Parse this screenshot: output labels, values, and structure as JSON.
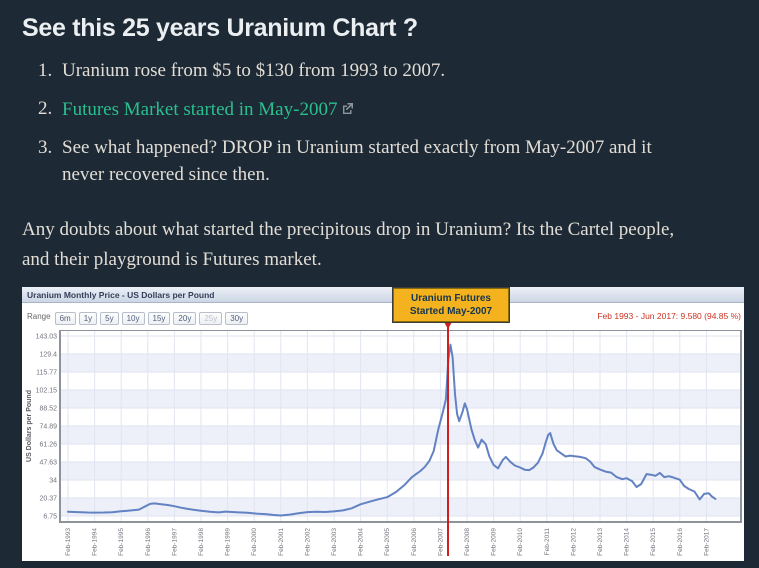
{
  "page": {
    "heading": "See this 25 years Uranium Chart ?",
    "list_items": [
      {
        "number": "1.",
        "text": "Uranium rose from $5 to $130 from 1993 to 2007."
      },
      {
        "number": "2.",
        "text": "Futures Market started in May-2007"
      },
      {
        "number": "3.",
        "text": "See what happened? DROP in Uranium started exactly from May-2007 and it never recovered since then."
      }
    ],
    "paragraph": "Any doubts about what started the precipitous drop in Uranium? Its the Cartel people, and their playground is Futures market."
  },
  "colors": {
    "page_background": "#1d2a35",
    "heading_text": "#eceff1",
    "body_text": "#e2ddd6",
    "link_accent": "#2abf8e",
    "annotation_background": "#f3b21e",
    "alert_red": "#cf1f1f",
    "series_line": "#6282c2",
    "band_fill": "#edf0f9"
  },
  "chart_data": {
    "type": "line",
    "title": "Uranium Monthly Price - US Dollars per Pound",
    "toolbar": {
      "range_label": "Range",
      "buttons": [
        "6m",
        "1y",
        "5y",
        "10y",
        "15y",
        "20y",
        "25y",
        "30y"
      ],
      "disabled_button": "25y"
    },
    "period_summary": "Feb 1993 - Jun 2017: 9.580 (94.85 %)",
    "annotation": {
      "line1": "Uranium Futures",
      "line2": "Started May-2007",
      "x_year": 2007.37
    },
    "ylabel": "US Dollars per Pound",
    "xlabel": "",
    "legend": "none",
    "grid": true,
    "y_axis_range": [
      6.75,
      143.03
    ],
    "x_axis_range": [
      1993.08,
      2017.5
    ],
    "y_ticks": [
      143.03,
      129.4,
      115.77,
      102.15,
      88.52,
      74.89,
      61.26,
      47.63,
      34,
      20.37,
      6.75
    ],
    "x_tick_labels": [
      "Feb-1993",
      "Feb-1994",
      "Feb-1995",
      "Feb-1996",
      "Feb-1997",
      "Feb-1998",
      "Feb-1999",
      "Feb-2000",
      "Feb-2001",
      "Feb-2002",
      "Feb-2003",
      "Feb-2004",
      "Feb-2005",
      "Feb-2006",
      "Feb-2007",
      "Feb-2008",
      "Feb-2009",
      "Feb-2010",
      "Feb-2011",
      "Feb-2012",
      "Feb-2013",
      "Feb-2014",
      "Feb-2015",
      "Feb-2016",
      "Feb-2017"
    ],
    "series": [
      {
        "name": "Uranium Monthly Price",
        "color": "#6282c2",
        "points": [
          [
            1993.08,
            10.0
          ],
          [
            1993.33,
            9.8
          ],
          [
            1993.58,
            9.6
          ],
          [
            1993.83,
            9.4
          ],
          [
            1994.08,
            9.3
          ],
          [
            1994.42,
            9.4
          ],
          [
            1994.75,
            9.6
          ],
          [
            1995.08,
            10.3
          ],
          [
            1995.42,
            10.9
          ],
          [
            1995.75,
            11.6
          ],
          [
            1996.0,
            14.2
          ],
          [
            1996.17,
            15.9
          ],
          [
            1996.33,
            16.3
          ],
          [
            1996.58,
            15.7
          ],
          [
            1996.83,
            15.1
          ],
          [
            1997.08,
            14.2
          ],
          [
            1997.33,
            13.0
          ],
          [
            1997.58,
            12.1
          ],
          [
            1997.83,
            11.4
          ],
          [
            1998.08,
            10.8
          ],
          [
            1998.42,
            10.0
          ],
          [
            1998.75,
            9.5
          ],
          [
            1999.0,
            10.1
          ],
          [
            1999.25,
            9.8
          ],
          [
            1999.5,
            9.5
          ],
          [
            1999.83,
            9.2
          ],
          [
            2000.17,
            8.6
          ],
          [
            2000.5,
            8.2
          ],
          [
            2000.83,
            7.5
          ],
          [
            2001.08,
            7.1
          ],
          [
            2001.42,
            7.8
          ],
          [
            2001.75,
            8.8
          ],
          [
            2002.08,
            9.7
          ],
          [
            2002.42,
            9.9
          ],
          [
            2002.75,
            9.8
          ],
          [
            2003.08,
            10.2
          ],
          [
            2003.42,
            11.0
          ],
          [
            2003.75,
            12.6
          ],
          [
            2004.08,
            15.6
          ],
          [
            2004.42,
            17.6
          ],
          [
            2004.75,
            19.4
          ],
          [
            2005.08,
            21.0
          ],
          [
            2005.42,
            25.0
          ],
          [
            2005.75,
            30.5
          ],
          [
            2006.0,
            36.0
          ],
          [
            2006.17,
            38.5
          ],
          [
            2006.33,
            40.8
          ],
          [
            2006.5,
            44.0
          ],
          [
            2006.67,
            48.5
          ],
          [
            2006.83,
            56.0
          ],
          [
            2007.0,
            72.0
          ],
          [
            2007.17,
            85.0
          ],
          [
            2007.29,
            95.0
          ],
          [
            2007.38,
            125.0
          ],
          [
            2007.46,
            136.5
          ],
          [
            2007.54,
            127.0
          ],
          [
            2007.63,
            99.0
          ],
          [
            2007.71,
            84.0
          ],
          [
            2007.79,
            78.5
          ],
          [
            2007.92,
            86.0
          ],
          [
            2008.0,
            92.0
          ],
          [
            2008.08,
            88.0
          ],
          [
            2008.25,
            72.5
          ],
          [
            2008.38,
            64.0
          ],
          [
            2008.5,
            58.5
          ],
          [
            2008.63,
            64.5
          ],
          [
            2008.79,
            61.0
          ],
          [
            2008.92,
            52.0
          ],
          [
            2009.08,
            45.5
          ],
          [
            2009.25,
            42.8
          ],
          [
            2009.42,
            49.0
          ],
          [
            2009.54,
            51.5
          ],
          [
            2009.71,
            47.8
          ],
          [
            2009.88,
            45.0
          ],
          [
            2010.08,
            43.5
          ],
          [
            2010.25,
            41.8
          ],
          [
            2010.42,
            41.5
          ],
          [
            2010.58,
            43.5
          ],
          [
            2010.75,
            47.0
          ],
          [
            2010.92,
            54.0
          ],
          [
            2011.04,
            62.5
          ],
          [
            2011.13,
            68.0
          ],
          [
            2011.21,
            69.5
          ],
          [
            2011.33,
            61.5
          ],
          [
            2011.46,
            56.5
          ],
          [
            2011.63,
            54.0
          ],
          [
            2011.79,
            51.8
          ],
          [
            2011.96,
            52.5
          ],
          [
            2012.13,
            52.0
          ],
          [
            2012.33,
            51.5
          ],
          [
            2012.54,
            50.5
          ],
          [
            2012.71,
            48.0
          ],
          [
            2012.88,
            43.8
          ],
          [
            2013.08,
            42.0
          ],
          [
            2013.29,
            40.4
          ],
          [
            2013.5,
            39.6
          ],
          [
            2013.71,
            36.2
          ],
          [
            2013.92,
            34.6
          ],
          [
            2014.08,
            35.4
          ],
          [
            2014.29,
            33.2
          ],
          [
            2014.46,
            28.7
          ],
          [
            2014.63,
            31.0
          ],
          [
            2014.83,
            38.5
          ],
          [
            2015.0,
            38.0
          ],
          [
            2015.17,
            37.2
          ],
          [
            2015.33,
            39.4
          ],
          [
            2015.5,
            36.2
          ],
          [
            2015.67,
            36.9
          ],
          [
            2015.83,
            36.0
          ],
          [
            2016.08,
            34.2
          ],
          [
            2016.25,
            29.5
          ],
          [
            2016.42,
            27.2
          ],
          [
            2016.63,
            25.3
          ],
          [
            2016.83,
            19.3
          ],
          [
            2017.0,
            23.5
          ],
          [
            2017.17,
            24.0
          ],
          [
            2017.29,
            21.5
          ],
          [
            2017.42,
            19.7
          ]
        ]
      }
    ]
  }
}
